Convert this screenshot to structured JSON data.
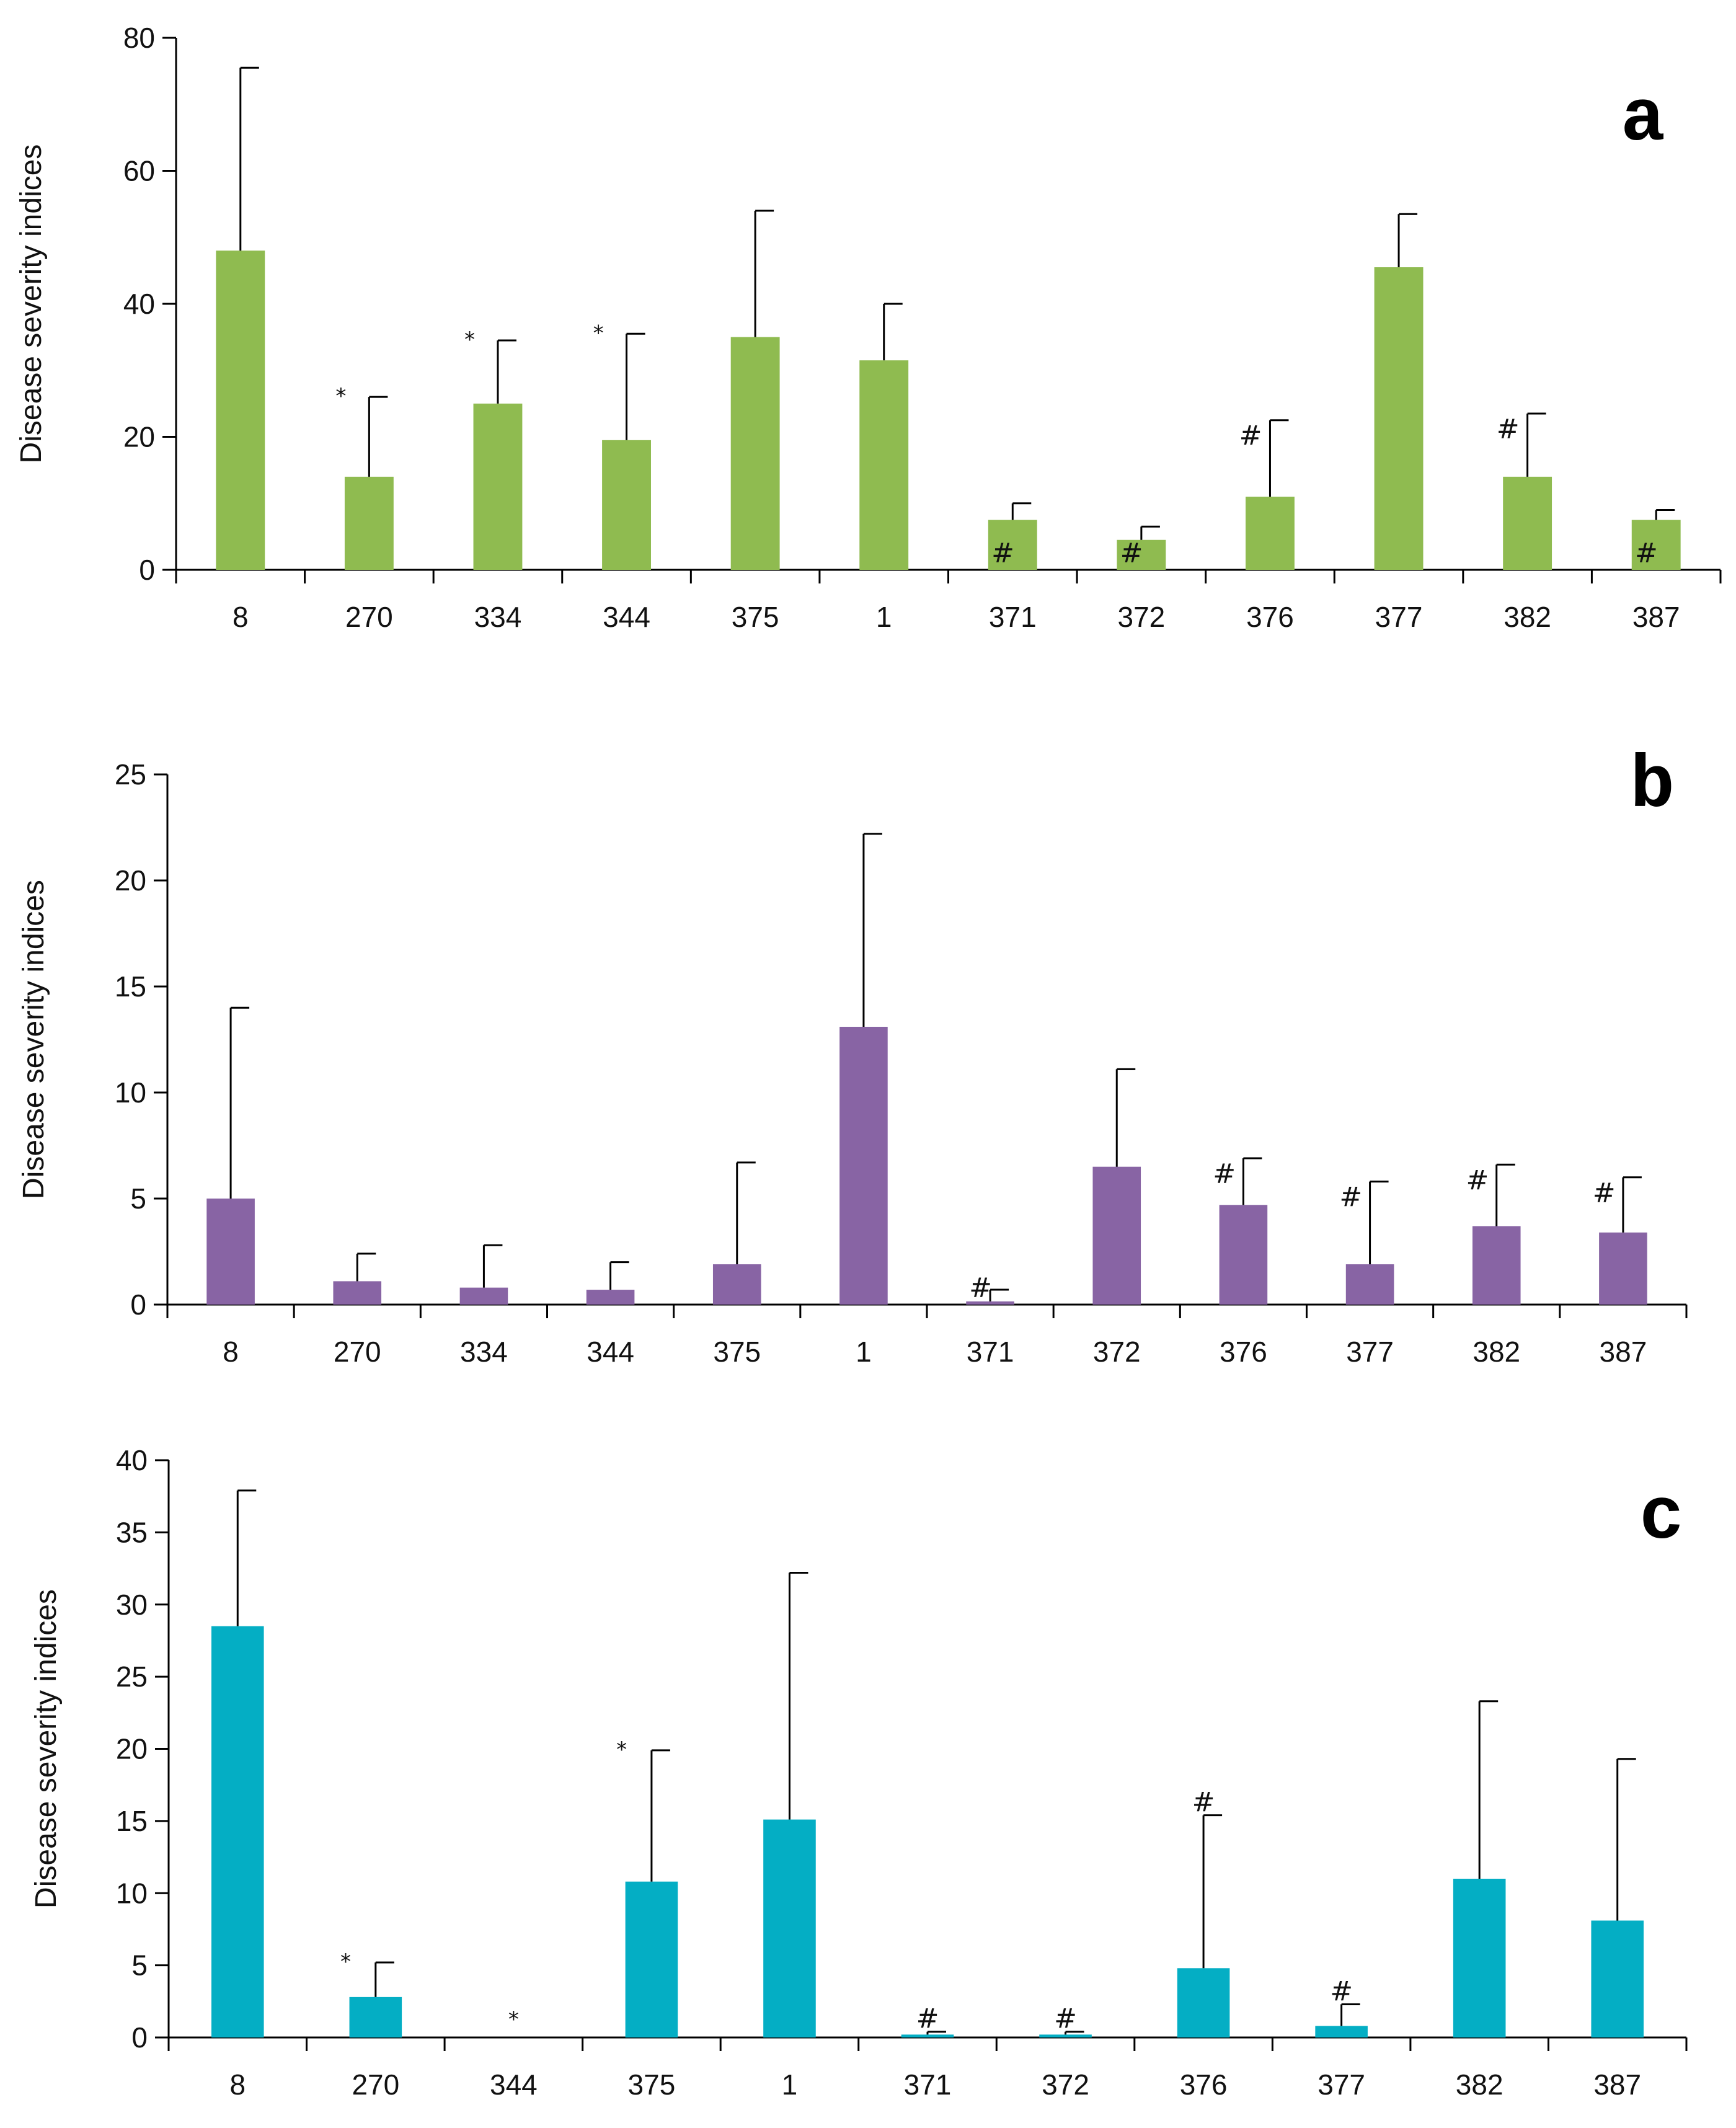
{
  "figure": {
    "ylabel": "Disease severity indices"
  },
  "chart_data": [
    {
      "type": "bar",
      "panel_label": "a",
      "ylabel": "Disease severity indices",
      "ylim": [
        0,
        80
      ],
      "yticks": [
        0,
        20,
        40,
        60,
        80
      ],
      "ytick_labels": [
        "0",
        "20",
        "40",
        "60",
        "80"
      ],
      "color": "#8fbb50",
      "categories": [
        "8",
        "270",
        "334",
        "344",
        "375",
        "1",
        "371",
        "372",
        "376",
        "377",
        "382",
        "387"
      ],
      "values": [
        48,
        14,
        25,
        19.5,
        35,
        31.5,
        7.5,
        4.5,
        11,
        45.5,
        14,
        7.5
      ],
      "error_upper": [
        75.5,
        26,
        34.5,
        35.5,
        54,
        40,
        10,
        6.5,
        22.5,
        53.5,
        23.5,
        9
      ],
      "markers": [
        "",
        "*",
        "*",
        "*",
        "",
        "",
        "#",
        "#",
        "#",
        "",
        "#",
        "#"
      ]
    },
    {
      "type": "bar",
      "panel_label": "b",
      "ylabel": "Disease severity indices",
      "ylim": [
        0,
        25
      ],
      "yticks": [
        0,
        5,
        10,
        15,
        20,
        25
      ],
      "ytick_labels": [
        "0",
        "5",
        "10",
        "15",
        "20",
        "25"
      ],
      "color": "#8864a4",
      "categories": [
        "8",
        "270",
        "334",
        "344",
        "375",
        "1",
        "371",
        "372",
        "376",
        "377",
        "382",
        "387"
      ],
      "values": [
        5,
        1.1,
        0.8,
        0.7,
        1.9,
        13.1,
        0.15,
        6.5,
        4.7,
        1.9,
        3.7,
        3.4
      ],
      "error_upper": [
        14,
        2.4,
        2.8,
        2,
        6.7,
        22.2,
        0.7,
        11.1,
        6.9,
        5.8,
        6.6,
        6
      ],
      "markers": [
        "",
        "",
        "",
        "",
        "",
        "",
        "#",
        "",
        "#",
        "#",
        "#",
        "#"
      ]
    },
    {
      "type": "bar",
      "panel_label": "c",
      "ylabel": "Disease severity indices",
      "ylim": [
        0,
        40
      ],
      "yticks": [
        0,
        5,
        10,
        15,
        20,
        25,
        30,
        35,
        40
      ],
      "ytick_labels": [
        "0",
        "5",
        "10",
        "15",
        "20",
        "25",
        "30",
        "35",
        "40"
      ],
      "color": "#04aec4",
      "categories": [
        "8",
        "270",
        "344",
        "375",
        "1",
        "371",
        "372",
        "376",
        "377",
        "382",
        "387"
      ],
      "values": [
        28.5,
        2.8,
        0,
        10.8,
        15.1,
        0.2,
        0.2,
        4.8,
        0.8,
        11,
        8.1
      ],
      "error_upper": [
        37.9,
        5.2,
        0,
        19.9,
        32.2,
        0.4,
        0.4,
        15.4,
        2.3,
        23.3,
        19.3
      ],
      "markers": [
        "",
        "*",
        "*",
        "*",
        "",
        "#",
        "#",
        "#",
        "#",
        "",
        ""
      ]
    }
  ]
}
